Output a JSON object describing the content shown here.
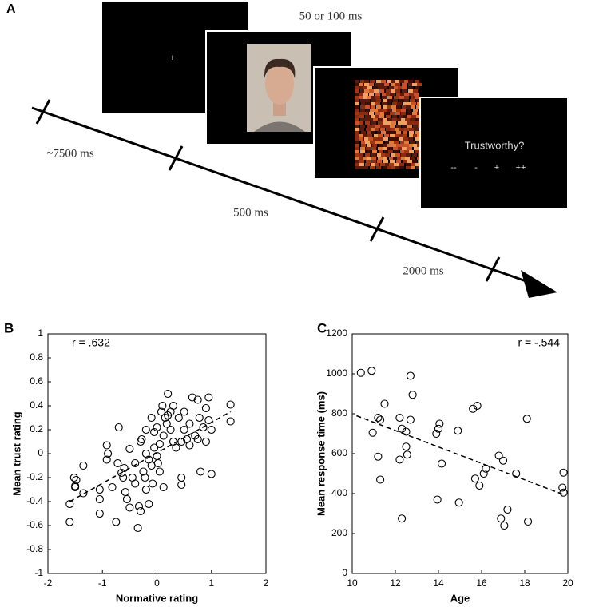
{
  "diagram": {
    "label": "A",
    "fixation": "+",
    "duration_1": "50 or 100 ms",
    "duration_2": "~7500 ms",
    "duration_3": "500 ms",
    "duration_4": "2000 ms",
    "question": "Trustworthy?",
    "options": [
      "--",
      "-",
      "+",
      "++"
    ]
  },
  "chart_data": [
    {
      "type": "scatter",
      "label": "B",
      "annotation": "r = .632",
      "xlabel": "Normative rating",
      "ylabel": "Mean trust rating",
      "xlim": [
        -2,
        2
      ],
      "xticks": [
        -2,
        -1,
        0,
        1,
        2
      ],
      "ylim": [
        -1,
        1
      ],
      "yticks": [
        -1,
        -0.8,
        -0.6,
        -0.4,
        -0.2,
        0,
        0.2,
        0.4,
        0.6,
        0.8,
        1
      ],
      "x": [
        -1.6,
        -1.6,
        -1.5,
        -1.52,
        -1.48,
        -1.5,
        -1.35,
        -1.35,
        -1.05,
        -1.05,
        -1.05,
        -0.92,
        -0.9,
        -0.92,
        -0.82,
        -0.75,
        -0.7,
        -0.72,
        -0.65,
        -0.62,
        -0.6,
        -0.58,
        -0.55,
        -0.5,
        -0.5,
        -0.45,
        -0.4,
        -0.4,
        -0.35,
        -0.33,
        -0.3,
        -0.3,
        -0.28,
        -0.25,
        -0.22,
        -0.2,
        -0.2,
        -0.15,
        -0.15,
        -0.1,
        -0.1,
        -0.08,
        -0.05,
        -0.05,
        0,
        0,
        0.02,
        0.05,
        0.05,
        0.08,
        0.1,
        0.12,
        0.12,
        0.15,
        0.18,
        0.2,
        0.2,
        0.25,
        0.25,
        0.3,
        0.35,
        0.4,
        0.45,
        0.45,
        0.45,
        0.5,
        0.5,
        0.55,
        0.6,
        0.65,
        0.7,
        0.75,
        0.78,
        0.8,
        0.85,
        0.9,
        0.95,
        0.95,
        1,
        1,
        1.35,
        1.35,
        0.6,
        0.75,
        0.9,
        -0.2,
        0.3
      ],
      "values": [
        -0.57,
        -0.42,
        -0.28,
        -0.2,
        -0.22,
        -0.27,
        -0.33,
        -0.1,
        -0.3,
        -0.38,
        -0.5,
        0.07,
        0,
        -0.05,
        -0.28,
        -0.57,
        0.22,
        -0.08,
        -0.16,
        -0.2,
        -0.12,
        -0.32,
        -0.38,
        -0.45,
        0.04,
        -0.2,
        -0.08,
        -0.25,
        -0.62,
        -0.44,
        -0.48,
        0.1,
        0.12,
        -0.15,
        -0.2,
        0,
        0.2,
        -0.05,
        -0.42,
        0.3,
        -0.1,
        -0.25,
        0.18,
        0.05,
        -0.02,
        0.22,
        -0.08,
        0.08,
        -0.15,
        0.35,
        0.4,
        0.15,
        -0.28,
        0.3,
        0.25,
        0.5,
        0.32,
        0.35,
        0.2,
        0.1,
        0.05,
        0.3,
        0.1,
        -0.2,
        -0.26,
        0.35,
        0.2,
        0.12,
        0.25,
        0.47,
        0.15,
        0.45,
        0.3,
        -0.15,
        0.22,
        0.38,
        0.47,
        0.28,
        0.2,
        -0.17,
        0.41,
        0.27,
        0.07,
        0.12,
        0.1,
        -0.3,
        0.4
      ],
      "trend": {
        "x": [
          -1.6,
          1.35
        ],
        "values": [
          -0.4,
          0.35
        ]
      }
    },
    {
      "type": "scatter",
      "label": "C",
      "annotation": "r = -.544",
      "xlabel": "Age",
      "ylabel": "Mean response time (ms)",
      "xlim": [
        10,
        20
      ],
      "xticks": [
        10,
        12,
        14,
        16,
        18,
        20
      ],
      "ylim": [
        0,
        1200
      ],
      "yticks": [
        0,
        200,
        400,
        600,
        800,
        1000,
        1200
      ],
      "x": [
        10.4,
        10.9,
        11.2,
        10.95,
        11.3,
        11.2,
        11.3,
        11.5,
        12.2,
        12.3,
        12.2,
        12.3,
        12.5,
        12.55,
        12.5,
        12.7,
        12.8,
        12.7,
        13.9,
        14,
        14.05,
        14.15,
        13.95,
        14.9,
        14.95,
        15.6,
        15.8,
        15.7,
        15.9,
        16.1,
        16.2,
        16.8,
        16.9,
        17,
        17.05,
        17.2,
        17.6,
        18.1,
        18.15,
        19.8,
        19.75,
        19.8
      ],
      "values": [
        1005,
        1015,
        780,
        705,
        770,
        585,
        470,
        850,
        780,
        725,
        570,
        275,
        710,
        595,
        635,
        990,
        895,
        770,
        700,
        725,
        750,
        550,
        370,
        715,
        355,
        825,
        840,
        475,
        440,
        500,
        525,
        590,
        275,
        565,
        240,
        320,
        500,
        775,
        260,
        505,
        430,
        405
      ],
      "trend": {
        "x": [
          10.2,
          19.8
        ],
        "values": [
          790,
          395
        ]
      }
    }
  ]
}
